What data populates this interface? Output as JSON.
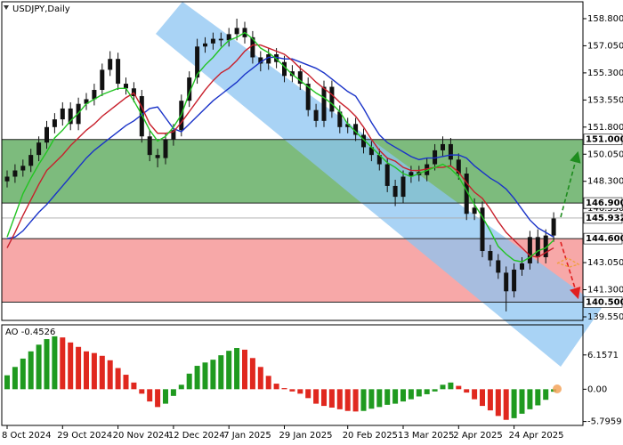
{
  "chart_data": [
    {
      "type": "candlestick",
      "title": "USDJPY,Daily",
      "categories": [
        "8 Oct 2024",
        null,
        null,
        null,
        null,
        null,
        null,
        "29 Oct 2024",
        null,
        null,
        null,
        null,
        null,
        null,
        "20 Nov 2024",
        null,
        null,
        null,
        null,
        null,
        null,
        "12 Dec 2024",
        null,
        null,
        null,
        null,
        null,
        null,
        "7 Jan 2025",
        null,
        null,
        null,
        null,
        null,
        null,
        "29 Jan 2025",
        null,
        null,
        null,
        null,
        null,
        null,
        null,
        "20 Feb 2025",
        null,
        null,
        null,
        null,
        null,
        null,
        "13 Mar 2025",
        null,
        null,
        null,
        null,
        null,
        null,
        "2 Apr 2025",
        null,
        null,
        null,
        null,
        null,
        null,
        "24 Apr 2025",
        null,
        null,
        null,
        null,
        null
      ],
      "open": [
        148.3,
        148.6,
        149.0,
        149.3,
        150.0,
        150.8,
        151.8,
        152.3,
        153.0,
        152.0,
        153.3,
        153.6,
        154.2,
        155.5,
        156.2,
        154.6,
        154.3,
        153.8,
        151.2,
        150.0,
        149.8,
        151.0,
        151.6,
        153.5,
        155.0,
        157.0,
        157.2,
        157.5,
        157.4,
        157.8,
        158.2,
        157.6,
        156.3,
        155.9,
        156.5,
        156.0,
        155.1,
        155.4,
        154.6,
        152.9,
        152.2,
        154.4,
        152.8,
        151.8,
        152.0,
        151.3,
        150.5,
        150.0,
        149.4,
        148.0,
        147.3,
        148.6,
        148.9,
        148.7,
        149.4,
        150.3,
        150.7,
        149.7,
        148.8,
        146.2,
        146.6,
        143.8,
        143.2,
        142.4,
        141.2,
        142.6,
        143.0,
        144.7,
        143.4,
        144.8
      ],
      "high": [
        149.0,
        149.4,
        149.7,
        150.4,
        151.2,
        152.2,
        152.7,
        153.4,
        153.4,
        153.7,
        154.0,
        154.6,
        155.9,
        156.7,
        156.6,
        155.0,
        154.7,
        154.2,
        151.6,
        150.4,
        151.4,
        152.0,
        153.9,
        155.4,
        157.5,
        157.6,
        157.9,
        157.9,
        158.2,
        158.8,
        158.6,
        158.0,
        156.7,
        156.9,
        156.9,
        156.4,
        155.8,
        155.8,
        155.0,
        153.3,
        154.8,
        154.8,
        153.2,
        152.4,
        152.4,
        151.7,
        150.9,
        150.4,
        149.8,
        148.4,
        149.0,
        149.3,
        149.3,
        149.8,
        150.7,
        151.2,
        151.1,
        150.1,
        149.2,
        147.2,
        147.0,
        144.2,
        143.6,
        142.8,
        143.0,
        143.4,
        145.1,
        145.2,
        145.2,
        146.3
      ],
      "low": [
        147.9,
        148.2,
        148.6,
        148.9,
        149.6,
        150.4,
        151.4,
        151.9,
        151.6,
        151.6,
        152.9,
        153.2,
        153.8,
        155.1,
        154.2,
        153.9,
        153.4,
        150.8,
        149.6,
        149.2,
        149.4,
        150.6,
        151.2,
        153.1,
        154.6,
        156.6,
        156.8,
        157.0,
        157.0,
        157.4,
        157.2,
        155.9,
        155.4,
        155.5,
        155.6,
        154.7,
        154.7,
        154.2,
        152.5,
        151.8,
        151.8,
        152.4,
        151.4,
        151.4,
        150.9,
        150.1,
        149.6,
        149.0,
        147.6,
        146.7,
        146.9,
        148.2,
        148.3,
        148.3,
        149.0,
        149.9,
        149.3,
        148.4,
        145.8,
        145.8,
        143.4,
        142.8,
        142.0,
        139.9,
        140.8,
        142.2,
        142.6,
        143.0,
        143.0,
        144.4
      ],
      "close": [
        148.6,
        149.0,
        149.3,
        150.0,
        150.8,
        151.8,
        152.3,
        153.0,
        152.0,
        153.3,
        153.6,
        154.2,
        155.5,
        156.2,
        154.6,
        154.3,
        153.8,
        151.2,
        150.0,
        149.8,
        151.0,
        151.6,
        153.5,
        155.0,
        157.0,
        157.2,
        157.5,
        157.4,
        157.8,
        158.2,
        157.6,
        156.3,
        155.9,
        156.5,
        156.0,
        155.1,
        155.4,
        154.6,
        152.9,
        152.2,
        154.4,
        152.8,
        151.8,
        152.0,
        151.3,
        150.5,
        150.0,
        149.4,
        148.0,
        147.3,
        148.6,
        148.9,
        148.7,
        149.4,
        150.3,
        150.7,
        149.7,
        148.8,
        146.2,
        146.6,
        143.8,
        143.2,
        142.4,
        141.2,
        142.6,
        143.0,
        144.7,
        143.4,
        144.8,
        145.9
      ],
      "candle_color": "#111111",
      "series": [
        {
          "color": "#1a33c8",
          "values": [
            144.6,
            144.7,
            145.1,
            145.7,
            146.3,
            146.8,
            147.4,
            148.0,
            148.6,
            149.2,
            149.8,
            150.3,
            150.7,
            151.1,
            151.5,
            151.9,
            152.2,
            152.6,
            153.0,
            153.1,
            152.4,
            151.7,
            151.5,
            152.0,
            152.5,
            153.0,
            153.5,
            153.9,
            154.3,
            154.7,
            155.2,
            155.6,
            156.0,
            156.3,
            156.3,
            156.2,
            156.2,
            156.0,
            155.8,
            155.6,
            155.3,
            154.9,
            154.5,
            154.1,
            153.8,
            153.0,
            152.1,
            151.3,
            150.8,
            150.5,
            150.2,
            149.9,
            149.7,
            149.8,
            149.8,
            149.9,
            150.0,
            150.0,
            149.8,
            149.3,
            148.9,
            148.5,
            148.2,
            147.8,
            147.2,
            146.5,
            145.8,
            145.3,
            145.0,
            144.7
          ]
        },
        {
          "color": "#c8202c",
          "values": [
            144.0,
            145.0,
            146.1,
            147.1,
            148.1,
            149.0,
            149.5,
            150.0,
            150.6,
            151.1,
            151.6,
            152.0,
            152.5,
            152.9,
            153.3,
            153.7,
            154.0,
            153.1,
            152.0,
            151.4,
            151.4,
            151.5,
            152.1,
            152.8,
            153.5,
            154.2,
            154.8,
            155.3,
            155.6,
            156.1,
            156.7,
            157.1,
            157.1,
            156.9,
            156.7,
            156.5,
            156.1,
            155.6,
            155.2,
            154.7,
            154.3,
            153.9,
            153.4,
            153.0,
            152.5,
            151.8,
            151.0,
            150.3,
            149.8,
            149.6,
            149.2,
            149.0,
            149.0,
            149.1,
            149.2,
            149.2,
            149.3,
            148.9,
            148.2,
            147.6,
            147.2,
            146.5,
            145.7,
            145.0,
            144.5,
            144.0,
            143.5,
            143.4,
            143.7,
            144.0
          ]
        },
        {
          "color": "#22c422",
          "values": [
            144.7,
            146.1,
            147.5,
            148.5,
            149.4,
            150.2,
            151.1,
            151.6,
            152.2,
            152.7,
            153.3,
            153.6,
            153.9,
            154.1,
            154.3,
            154.3,
            153.5,
            152.6,
            151.6,
            150.9,
            151.2,
            151.8,
            152.6,
            154.0,
            155.2,
            155.8,
            156.3,
            156.9,
            157.4,
            157.6,
            157.9,
            157.5,
            156.9,
            156.6,
            156.2,
            155.7,
            155.2,
            154.8,
            154.4,
            154.0,
            153.7,
            153.3,
            152.8,
            152.0,
            151.5,
            151.0,
            150.5,
            150.0,
            149.5,
            149.2,
            148.8,
            148.6,
            148.8,
            149.0,
            149.2,
            149.4,
            149.1,
            148.6,
            147.7,
            146.8,
            146.0,
            145.1,
            144.1,
            143.6,
            143.2,
            143.1,
            143.4,
            143.8,
            144.0,
            144.5
          ]
        }
      ],
      "levels": [
        {
          "value": 151,
          "label": "151.000"
        },
        {
          "value": 146.9,
          "label": "146.900"
        },
        {
          "value": 144.6,
          "label": "144.600"
        },
        {
          "value": 140.5,
          "label": "140.500"
        }
      ],
      "zone_colors": [
        "#7dbb7d",
        "#f7a8a8"
      ],
      "last": {
        "value": 145.932,
        "label": "145.932"
      },
      "ylim": [
        139.32,
        159.89
      ],
      "yticks": [
        {
          "value": 158.8,
          "label": "158.800"
        },
        {
          "value": 157.05,
          "label": "157.050"
        },
        {
          "value": 155.3,
          "label": "155.300"
        },
        {
          "value": 153.55,
          "label": "153.550"
        },
        {
          "value": 151.8,
          "label": "151.800"
        },
        {
          "value": 150.05,
          "label": "150.050"
        },
        {
          "value": 148.3,
          "label": "148.300"
        },
        {
          "value": 146.55,
          "label": "146.550"
        },
        {
          "value": 143.05,
          "label": "143.050"
        },
        {
          "value": 141.3,
          "label": "141.300"
        },
        {
          "value": 139.55,
          "label": "139.550"
        }
      ]
    },
    {
      "type": "bar",
      "title": "AO -0.4526",
      "values": [
        2.5,
        4.0,
        5.5,
        6.8,
        8.0,
        9.0,
        9.5,
        9.3,
        8.4,
        7.6,
        6.8,
        6.5,
        6.0,
        5.2,
        3.8,
        2.6,
        1.2,
        -0.8,
        -2.2,
        -3.2,
        -2.6,
        -1.2,
        0.8,
        2.8,
        4.2,
        4.8,
        5.3,
        6.1,
        6.9,
        7.4,
        7.1,
        5.6,
        4.0,
        2.4,
        1.0,
        0.2,
        -0.4,
        -0.8,
        -1.6,
        -2.6,
        -3.0,
        -3.3,
        -3.6,
        -3.9,
        -4.0,
        -3.9,
        -3.5,
        -3.2,
        -2.8,
        -2.6,
        -2.2,
        -1.8,
        -1.3,
        -0.9,
        -0.4,
        0.8,
        1.2,
        0.6,
        -0.6,
        -1.8,
        -3.0,
        -3.8,
        -4.8,
        -5.5,
        -5.2,
        -4.4,
        -3.6,
        -2.9,
        -1.9,
        -0.45
      ],
      "up_color": "#1f9a1f",
      "down_color": "#e0281f",
      "ylim": [
        -6.5,
        11.4
      ],
      "yticks": [
        6.1571,
        {
          "value": 0,
          "label": "0.00"
        },
        -5.7959
      ]
    }
  ]
}
